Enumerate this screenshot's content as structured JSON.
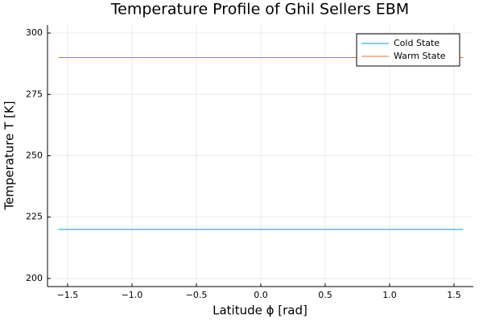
{
  "chart_data": {
    "type": "line",
    "title": "Temperature Profile of Ghil Sellers EBM",
    "xlabel": "Latitude ϕ [rad]",
    "ylabel": "Temperature T [K]",
    "x": [
      -1.5708,
      1.5708
    ],
    "series": [
      {
        "name": "Cold State",
        "color": "#009af9",
        "values": [
          220,
          220
        ]
      },
      {
        "name": "Warm State",
        "color": "#e26f46",
        "values": [
          290,
          290
        ]
      }
    ],
    "xlim": [
      -1.656,
      1.65
    ],
    "ylim": [
      196.7,
      303.3
    ],
    "xticks": [
      {
        "value": -1.5,
        "label": "−1.5"
      },
      {
        "value": -1,
        "label": "−1.0"
      },
      {
        "value": -0.5,
        "label": "−0.5"
      },
      {
        "value": 0,
        "label": "0.0"
      },
      {
        "value": 0.5,
        "label": "0.5"
      },
      {
        "value": 1,
        "label": "1.0"
      },
      {
        "value": 1.5,
        "label": "1.5"
      }
    ],
    "yticks": [
      200,
      225,
      250,
      275,
      300
    ],
    "grid": true,
    "legend": "top-right"
  }
}
